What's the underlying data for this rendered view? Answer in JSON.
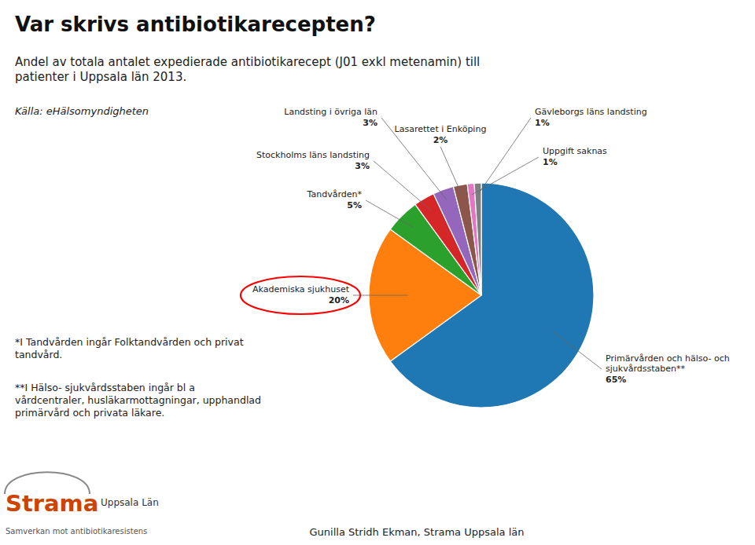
{
  "chart_data": {
    "type": "pie",
    "title": "Var skrivs antibiotikarecepten?",
    "subtitle": "Andel av totala antalet expedierade antibiotikarecept (J01 exkl metenamin) till\npatienter i Uppsala län 2013.",
    "source": "Källa: eHälsomyndigheten",
    "categories": [
      "Primärvården och hälso- och\nsjukvårdsstaben**",
      "Akademiska sjukhuset",
      "Tandvården*",
      "Stockholms läns landsting",
      "Landsting i övriga län",
      "Lasarettet i Enköping",
      "Uppgift saknas",
      "Gävleborgs läns landsting"
    ],
    "values": [
      65,
      20,
      5,
      3,
      3,
      2,
      1,
      1
    ],
    "value_labels": [
      "65%",
      "20%",
      "5%",
      "3%",
      "3%",
      "2%",
      "1%",
      "1%"
    ],
    "data_labels": true,
    "footnotes": [
      "*I Tandvården ingår Folktandvården och privat\ntandvård.",
      "**I Hälso- sjukvårdsstaben ingår bl a\nvårdcentraler, husläkarmottagningar, upphandlad\nprimärvård och privata läkare."
    ],
    "annotations": [
      "Strama",
      "Uppsala Län",
      "Samverkan mot antibiotikaresistens"
    ],
    "footer": "Gunilla Stridh Ekman, Strama Uppsala län"
  }
}
